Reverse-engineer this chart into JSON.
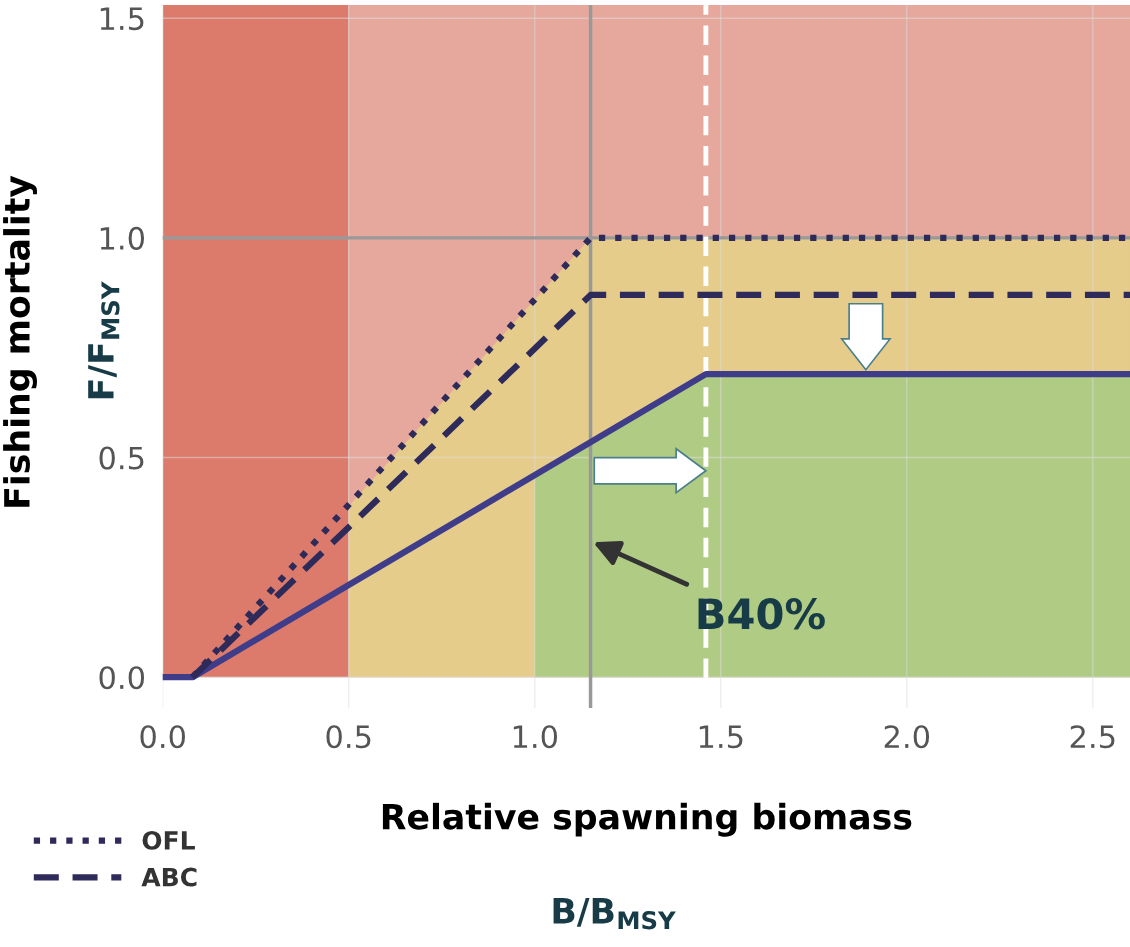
{
  "chart_data": {
    "type": "line",
    "xlabel": "Relative spawning biomass",
    "ylabel": "Fishing mortality",
    "xlim": [
      0,
      2.6
    ],
    "ylim": [
      -0.07,
      1.53
    ],
    "xticks": [
      {
        "value": 0,
        "label": "0.0"
      },
      {
        "value": 0.5,
        "label": "0.5"
      },
      {
        "value": 1,
        "label": "1.0"
      },
      {
        "value": 1.5,
        "label": "1.5"
      },
      {
        "value": 2,
        "label": "2.0"
      },
      {
        "value": 2.5,
        "label": "2.5"
      }
    ],
    "yticks": [
      {
        "value": 0,
        "label": "0.0"
      },
      {
        "value": 0.5,
        "label": "0.5"
      },
      {
        "value": 1,
        "label": "1.0"
      },
      {
        "value": 1.5,
        "label": "1.5"
      }
    ],
    "grid": true,
    "legend": "bottom left",
    "series": [
      {
        "type": "area",
        "color": "#e5cc8a",
        "x": [
          0.5,
          1.15,
          2.6
        ],
        "values": [
          0.39,
          1.0,
          1.0
        ]
      },
      {
        "type": "area",
        "color": "#b0cc84",
        "x": [
          1.0,
          1.46,
          2.6
        ],
        "values": [
          0.46,
          0.69,
          0.69
        ]
      },
      {
        "color": "#3f3d8a",
        "line_style": "solid",
        "x": [
          0,
          0.08,
          1.46,
          2.6
        ],
        "values": [
          0,
          0,
          0.69,
          0.69
        ]
      },
      {
        "name": "OFL",
        "color": "#2e2a5a",
        "line_style": "dotted",
        "x": [
          0.08,
          1.15,
          2.6
        ],
        "values": [
          0,
          1.0,
          1.0
        ]
      },
      {
        "name": "ABC",
        "color": "#2e2a5a",
        "line_style": "dashed",
        "x": [
          0.08,
          1.15,
          2.6
        ],
        "values": [
          0,
          0.87,
          0.87
        ]
      }
    ],
    "bands": [
      {
        "axis": "x",
        "from": 0,
        "to": 0.5,
        "color": "#dc7b6c"
      },
      {
        "axis": "x",
        "from": 0.5,
        "to": 2.6,
        "color": "#e6a89c"
      }
    ],
    "ref_lines": [
      {
        "axis": "x",
        "value": 1.15,
        "color": "#999999",
        "line_style": "solid"
      },
      {
        "axis": "y",
        "value": 1.0,
        "color": "#999999",
        "line_style": "solid"
      },
      {
        "axis": "x",
        "value": 1.46,
        "color": "#ffffff",
        "line_style": "dashed"
      }
    ],
    "annotations": [
      {
        "text": "B40%",
        "x": 1.15,
        "y": 0.31
      },
      "F/F$_{MSY}$",
      "B/B$_{MSY}$"
    ]
  }
}
